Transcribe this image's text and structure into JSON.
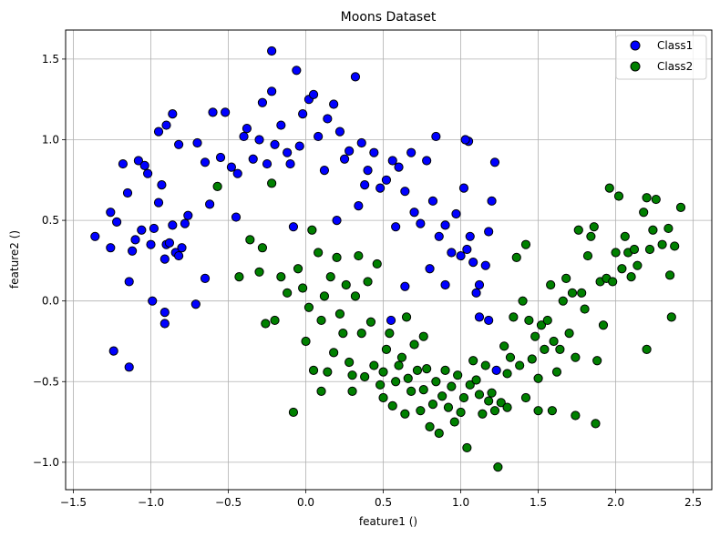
{
  "chart_data": {
    "type": "scatter",
    "title": "Moons Dataset",
    "xlabel": "feature1 ()",
    "ylabel": "feature2 ()",
    "xlim": [
      -1.55,
      2.62
    ],
    "ylim": [
      -1.17,
      1.68
    ],
    "xticks": [
      -1.5,
      -1.0,
      -0.5,
      0.0,
      0.5,
      1.0,
      1.5,
      2.0,
      2.5
    ],
    "yticks": [
      -1.0,
      -0.5,
      0.0,
      0.5,
      1.0,
      1.5
    ],
    "grid": true,
    "legend_position": "top-right",
    "series": [
      {
        "name": "Class1",
        "color": "#0000ff",
        "points": [
          [
            -1.36,
            0.4
          ],
          [
            -1.26,
            0.33
          ],
          [
            -1.26,
            0.55
          ],
          [
            -1.22,
            0.49
          ],
          [
            -1.18,
            0.85
          ],
          [
            -1.15,
            0.67
          ],
          [
            -1.14,
            0.12
          ],
          [
            -1.12,
            0.31
          ],
          [
            -1.1,
            0.38
          ],
          [
            -1.08,
            0.87
          ],
          [
            -1.06,
            0.44
          ],
          [
            -1.04,
            0.84
          ],
          [
            -1.02,
            0.79
          ],
          [
            -1.0,
            0.35
          ],
          [
            -0.98,
            0.45
          ],
          [
            -0.95,
            0.61
          ],
          [
            -0.93,
            0.72
          ],
          [
            -0.91,
            0.26
          ],
          [
            -0.9,
            0.35
          ],
          [
            -0.88,
            0.36
          ],
          [
            -0.86,
            0.47
          ],
          [
            -0.84,
            0.3
          ],
          [
            -0.82,
            0.28
          ],
          [
            -0.8,
            0.33
          ],
          [
            -0.78,
            0.48
          ],
          [
            -0.76,
            0.53
          ],
          [
            -0.95,
            1.05
          ],
          [
            -0.9,
            1.09
          ],
          [
            -0.86,
            1.16
          ],
          [
            -0.82,
            0.97
          ],
          [
            -0.7,
            0.98
          ],
          [
            -0.65,
            0.86
          ],
          [
            -0.62,
            0.6
          ],
          [
            -0.6,
            1.17
          ],
          [
            -0.55,
            0.89
          ],
          [
            -0.52,
            1.17
          ],
          [
            -0.48,
            0.83
          ],
          [
            -0.44,
            0.79
          ],
          [
            -0.4,
            1.02
          ],
          [
            -0.38,
            1.07
          ],
          [
            -0.34,
            0.88
          ],
          [
            -0.3,
            1.0
          ],
          [
            -0.28,
            1.23
          ],
          [
            -0.25,
            0.85
          ],
          [
            -0.22,
            1.3
          ],
          [
            -0.2,
            0.97
          ],
          [
            -0.16,
            1.09
          ],
          [
            -0.12,
            0.92
          ],
          [
            -0.1,
            0.85
          ],
          [
            -0.06,
            1.43
          ],
          [
            -0.04,
            0.96
          ],
          [
            -0.02,
            1.16
          ],
          [
            0.02,
            1.25
          ],
          [
            0.05,
            1.28
          ],
          [
            0.08,
            1.02
          ],
          [
            0.12,
            0.81
          ],
          [
            0.14,
            1.13
          ],
          [
            0.18,
            1.22
          ],
          [
            0.22,
            1.05
          ],
          [
            0.25,
            0.88
          ],
          [
            0.28,
            0.93
          ],
          [
            0.32,
            1.39
          ],
          [
            0.36,
            0.98
          ],
          [
            0.4,
            0.81
          ],
          [
            0.44,
            0.92
          ],
          [
            0.48,
            0.7
          ],
          [
            0.52,
            0.75
          ],
          [
            0.56,
            0.87
          ],
          [
            0.6,
            0.83
          ],
          [
            0.64,
            0.68
          ],
          [
            0.68,
            0.92
          ],
          [
            0.7,
            0.55
          ],
          [
            0.74,
            0.48
          ],
          [
            0.78,
            0.87
          ],
          [
            0.82,
            0.62
          ],
          [
            0.86,
            0.4
          ],
          [
            0.9,
            0.47
          ],
          [
            0.94,
            0.3
          ],
          [
            0.97,
            0.54
          ],
          [
            1.0,
            0.28
          ],
          [
            1.02,
            0.7
          ],
          [
            1.04,
            0.32
          ],
          [
            1.06,
            0.4
          ],
          [
            1.08,
            0.24
          ],
          [
            1.1,
            0.05
          ],
          [
            1.12,
            0.1
          ],
          [
            1.16,
            0.22
          ],
          [
            1.18,
            0.43
          ],
          [
            1.2,
            0.62
          ],
          [
            1.22,
            0.86
          ],
          [
            1.05,
            0.99
          ],
          [
            1.03,
            1.0
          ],
          [
            0.84,
            1.02
          ],
          [
            -0.22,
            1.55
          ],
          [
            -1.24,
            -0.31
          ],
          [
            -1.14,
            -0.41
          ],
          [
            -0.99,
            0.0
          ],
          [
            -0.91,
            -0.14
          ],
          [
            -0.91,
            -0.07
          ],
          [
            -0.71,
            -0.02
          ],
          [
            -0.65,
            0.14
          ],
          [
            -0.45,
            0.52
          ],
          [
            0.2,
            0.5
          ],
          [
            0.34,
            0.59
          ],
          [
            0.58,
            0.46
          ],
          [
            0.64,
            0.09
          ],
          [
            0.8,
            0.2
          ],
          [
            0.9,
            0.1
          ],
          [
            1.12,
            -0.1
          ],
          [
            1.18,
            -0.12
          ],
          [
            1.23,
            -0.43
          ],
          [
            0.55,
            -0.12
          ],
          [
            -0.08,
            0.46
          ],
          [
            0.38,
            0.72
          ]
        ]
      },
      {
        "name": "Class2",
        "color": "#008000",
        "points": [
          [
            -0.57,
            0.71
          ],
          [
            -0.43,
            0.15
          ],
          [
            -0.36,
            0.38
          ],
          [
            -0.3,
            0.18
          ],
          [
            -0.28,
            0.33
          ],
          [
            -0.26,
            -0.14
          ],
          [
            -0.2,
            -0.12
          ],
          [
            -0.16,
            0.15
          ],
          [
            -0.12,
            0.05
          ],
          [
            -0.08,
            -0.69
          ],
          [
            -0.05,
            0.2
          ],
          [
            -0.02,
            0.08
          ],
          [
            0.0,
            -0.25
          ],
          [
            0.02,
            -0.04
          ],
          [
            0.05,
            -0.43
          ],
          [
            0.08,
            0.3
          ],
          [
            0.1,
            -0.12
          ],
          [
            0.12,
            0.03
          ],
          [
            0.14,
            -0.44
          ],
          [
            0.16,
            0.15
          ],
          [
            0.18,
            -0.32
          ],
          [
            0.2,
            0.27
          ],
          [
            0.22,
            -0.08
          ],
          [
            0.24,
            -0.2
          ],
          [
            0.26,
            0.1
          ],
          [
            0.28,
            -0.38
          ],
          [
            0.3,
            -0.56
          ],
          [
            0.32,
            0.03
          ],
          [
            0.34,
            0.28
          ],
          [
            0.36,
            -0.2
          ],
          [
            0.38,
            -0.47
          ],
          [
            0.4,
            0.12
          ],
          [
            0.42,
            -0.13
          ],
          [
            0.44,
            -0.4
          ],
          [
            0.46,
            0.23
          ],
          [
            0.48,
            -0.52
          ],
          [
            0.5,
            -0.6
          ],
          [
            0.52,
            -0.3
          ],
          [
            0.54,
            -0.2
          ],
          [
            0.56,
            -0.65
          ],
          [
            0.58,
            -0.5
          ],
          [
            0.6,
            -0.4
          ],
          [
            0.62,
            -0.35
          ],
          [
            0.64,
            -0.7
          ],
          [
            0.66,
            -0.48
          ],
          [
            0.68,
            -0.56
          ],
          [
            0.7,
            -0.27
          ],
          [
            0.72,
            -0.43
          ],
          [
            0.74,
            -0.68
          ],
          [
            0.76,
            -0.55
          ],
          [
            0.78,
            -0.42
          ],
          [
            0.8,
            -0.78
          ],
          [
            0.82,
            -0.64
          ],
          [
            0.84,
            -0.5
          ],
          [
            0.86,
            -0.82
          ],
          [
            0.88,
            -0.59
          ],
          [
            0.9,
            -0.43
          ],
          [
            0.92,
            -0.66
          ],
          [
            0.94,
            -0.53
          ],
          [
            0.96,
            -0.75
          ],
          [
            0.98,
            -0.46
          ],
          [
            1.0,
            -0.69
          ],
          [
            1.02,
            -0.6
          ],
          [
            1.04,
            -0.91
          ],
          [
            1.06,
            -0.52
          ],
          [
            1.08,
            -0.37
          ],
          [
            1.1,
            -0.49
          ],
          [
            1.12,
            -0.58
          ],
          [
            1.14,
            -0.7
          ],
          [
            1.16,
            -0.4
          ],
          [
            1.18,
            -0.62
          ],
          [
            1.2,
            -0.57
          ],
          [
            1.22,
            -0.68
          ],
          [
            1.24,
            -1.03
          ],
          [
            1.26,
            -0.63
          ],
          [
            1.28,
            -0.28
          ],
          [
            1.3,
            -0.45
          ],
          [
            1.32,
            -0.35
          ],
          [
            1.34,
            -0.1
          ],
          [
            1.36,
            0.27
          ],
          [
            1.38,
            -0.4
          ],
          [
            1.4,
            0.0
          ],
          [
            1.42,
            0.35
          ],
          [
            1.44,
            -0.12
          ],
          [
            1.46,
            -0.36
          ],
          [
            1.48,
            -0.22
          ],
          [
            1.5,
            -0.48
          ],
          [
            1.52,
            -0.15
          ],
          [
            1.54,
            -0.3
          ],
          [
            1.56,
            -0.12
          ],
          [
            1.58,
            0.1
          ],
          [
            1.6,
            -0.25
          ],
          [
            1.62,
            -0.44
          ],
          [
            1.64,
            -0.3
          ],
          [
            1.66,
            0.0
          ],
          [
            1.68,
            0.14
          ],
          [
            1.7,
            -0.2
          ],
          [
            1.72,
            0.05
          ],
          [
            1.74,
            -0.35
          ],
          [
            1.76,
            0.44
          ],
          [
            1.78,
            0.05
          ],
          [
            1.8,
            -0.05
          ],
          [
            1.82,
            0.28
          ],
          [
            1.84,
            0.4
          ],
          [
            1.86,
            0.46
          ],
          [
            1.88,
            -0.37
          ],
          [
            1.9,
            0.12
          ],
          [
            1.92,
            -0.15
          ],
          [
            1.94,
            0.14
          ],
          [
            1.96,
            0.7
          ],
          [
            1.98,
            0.12
          ],
          [
            2.0,
            0.3
          ],
          [
            2.02,
            0.65
          ],
          [
            2.04,
            0.2
          ],
          [
            2.06,
            0.4
          ],
          [
            2.08,
            0.3
          ],
          [
            2.1,
            0.15
          ],
          [
            2.12,
            0.32
          ],
          [
            2.14,
            0.22
          ],
          [
            2.18,
            0.55
          ],
          [
            2.2,
            0.64
          ],
          [
            2.22,
            0.32
          ],
          [
            2.24,
            0.44
          ],
          [
            2.26,
            0.63
          ],
          [
            2.3,
            0.35
          ],
          [
            2.34,
            0.45
          ],
          [
            2.36,
            -0.1
          ],
          [
            2.38,
            0.34
          ],
          [
            2.42,
            0.58
          ],
          [
            2.35,
            0.16
          ],
          [
            2.2,
            -0.3
          ],
          [
            1.87,
            -0.76
          ],
          [
            1.74,
            -0.71
          ],
          [
            1.5,
            -0.68
          ],
          [
            1.59,
            -0.68
          ],
          [
            1.42,
            -0.6
          ],
          [
            1.3,
            -0.66
          ],
          [
            0.76,
            -0.22
          ],
          [
            -0.22,
            0.73
          ],
          [
            0.04,
            0.44
          ],
          [
            0.1,
            -0.56
          ],
          [
            0.3,
            -0.46
          ],
          [
            0.5,
            -0.44
          ],
          [
            0.65,
            -0.1
          ]
        ]
      }
    ]
  }
}
